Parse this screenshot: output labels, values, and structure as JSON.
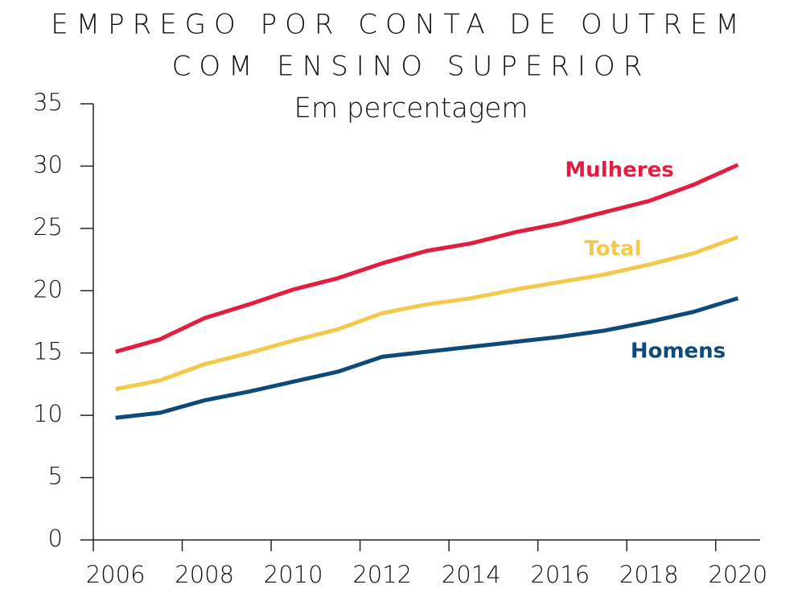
{
  "chart_data": {
    "type": "line",
    "title": [
      "EMPREGO POR CONTA DE OUTREM",
      "COM ENSINO SUPERIOR"
    ],
    "subtitle": "Em percentagem",
    "categories": [
      "2006",
      null,
      "2008",
      null,
      "2010",
      null,
      "2012",
      null,
      "2014",
      null,
      "2016",
      null,
      "2018",
      null,
      "2020"
    ],
    "series": [
      {
        "name": "Mulheres",
        "color": "#e31d3f",
        "values": [
          15.1,
          16.1,
          17.8,
          18.9,
          20.1,
          21.0,
          22.2,
          23.2,
          23.8,
          24.7,
          25.4,
          26.3,
          27.2,
          28.5,
          30.1
        ]
      },
      {
        "name": "Total",
        "color": "#f2c94c",
        "values": [
          12.1,
          12.8,
          14.1,
          15.0,
          16.0,
          16.9,
          18.2,
          18.9,
          19.4,
          20.1,
          20.7,
          21.3,
          22.1,
          23.0,
          24.3
        ]
      },
      {
        "name": "Homens",
        "color": "#0d4a7a",
        "values": [
          9.8,
          10.2,
          11.2,
          11.9,
          12.7,
          13.5,
          14.7,
          15.1,
          15.5,
          15.9,
          16.3,
          16.8,
          17.5,
          18.3,
          19.4
        ]
      }
    ],
    "ylim": [
      0,
      35
    ],
    "yticks": [
      0,
      5,
      10,
      15,
      20,
      25,
      30,
      35
    ],
    "grid": false
  }
}
